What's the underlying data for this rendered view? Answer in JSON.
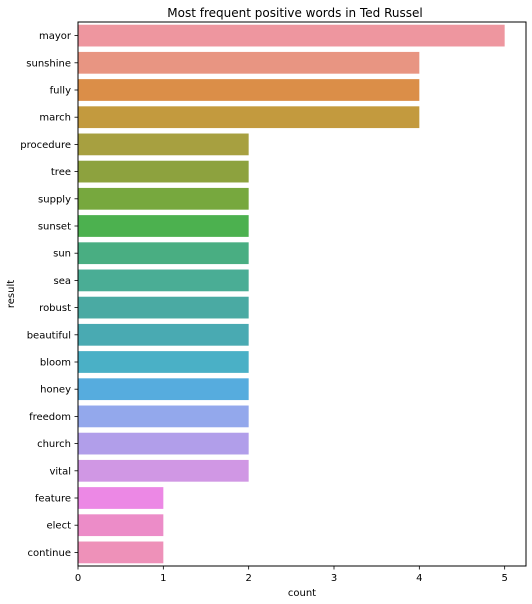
{
  "chart_data": {
    "type": "bar",
    "orientation": "horizontal",
    "title": "Most frequent positive words in Ted Russel",
    "xlabel": "count",
    "ylabel": "result",
    "xlim": [
      0,
      5.25
    ],
    "xticks": [
      0,
      1,
      2,
      3,
      4,
      5
    ],
    "grid": false,
    "categories": [
      "mayor",
      "sunshine",
      "fully",
      "march",
      "procedure",
      "tree",
      "supply",
      "sunset",
      "sun",
      "sea",
      "robust",
      "beautiful",
      "bloom",
      "honey",
      "freedom",
      "church",
      "vital",
      "feature",
      "elect",
      "continue"
    ],
    "values": [
      5,
      4,
      4,
      4,
      2,
      2,
      2,
      2,
      2,
      2,
      2,
      2,
      2,
      2,
      2,
      2,
      2,
      1,
      1,
      1
    ],
    "colors": [
      "#ee969f",
      "#e89582",
      "#db8e48",
      "#c39a3e",
      "#a7a040",
      "#8da23e",
      "#77a83e",
      "#4cb14f",
      "#49ae82",
      "#4aad95",
      "#4aaaa3",
      "#49aab2",
      "#4ab0c6",
      "#56acde",
      "#93a8ec",
      "#b19eea",
      "#d097e4",
      "#ec88e5",
      "#ec8cc8",
      "#ee91b9"
    ]
  }
}
